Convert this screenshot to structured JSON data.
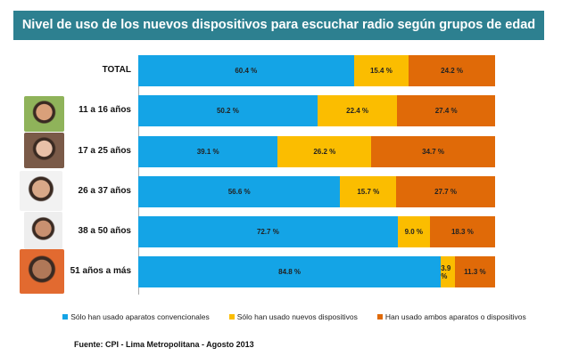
{
  "title": "Nivel de uso de los nuevos dispositivos para escuchar radio según grupos de edad",
  "chart_data": {
    "type": "bar",
    "orientation": "horizontal",
    "stacked": true,
    "title": "Nivel de uso de los nuevos dispositivos para escuchar radio según grupos de edad",
    "categories": [
      "TOTAL",
      "11 a 16 años",
      "17 a 25 años",
      "26 a 37 años",
      "38 a 50 años",
      "51 años a más"
    ],
    "series": [
      {
        "name": "Sólo han usado aparatos convencionales",
        "color": "#14a4e6",
        "values": [
          60.4,
          50.2,
          39.1,
          56.6,
          72.7,
          84.8
        ]
      },
      {
        "name": "Sólo han usado nuevos dispositivos",
        "color": "#fbbd00",
        "values": [
          15.4,
          22.4,
          26.2,
          15.7,
          9.0,
          3.9
        ]
      },
      {
        "name": "Han usado ambos aparatos o dispositivos",
        "color": "#e06a08",
        "values": [
          24.2,
          27.4,
          34.7,
          27.7,
          18.3,
          11.3
        ]
      }
    ],
    "labels": [
      [
        "60.4 %",
        "15.4 %",
        "24.2 %"
      ],
      [
        "50.2 %",
        "22.4 %",
        "27.4 %"
      ],
      [
        "39.1 %",
        "26.2 %",
        "34.7 %"
      ],
      [
        "56.6 %",
        "15.7 %",
        "27.7 %"
      ],
      [
        "72.7 %",
        "9.0 %",
        "18.3 %"
      ],
      [
        "84.8 %",
        "3.9 %",
        "11.3 %"
      ]
    ],
    "xlim": [
      0,
      100
    ],
    "grid": false,
    "legend": "bottom"
  },
  "source": "Fuente: CPI - Lima Metropolitana - Agosto 2013"
}
